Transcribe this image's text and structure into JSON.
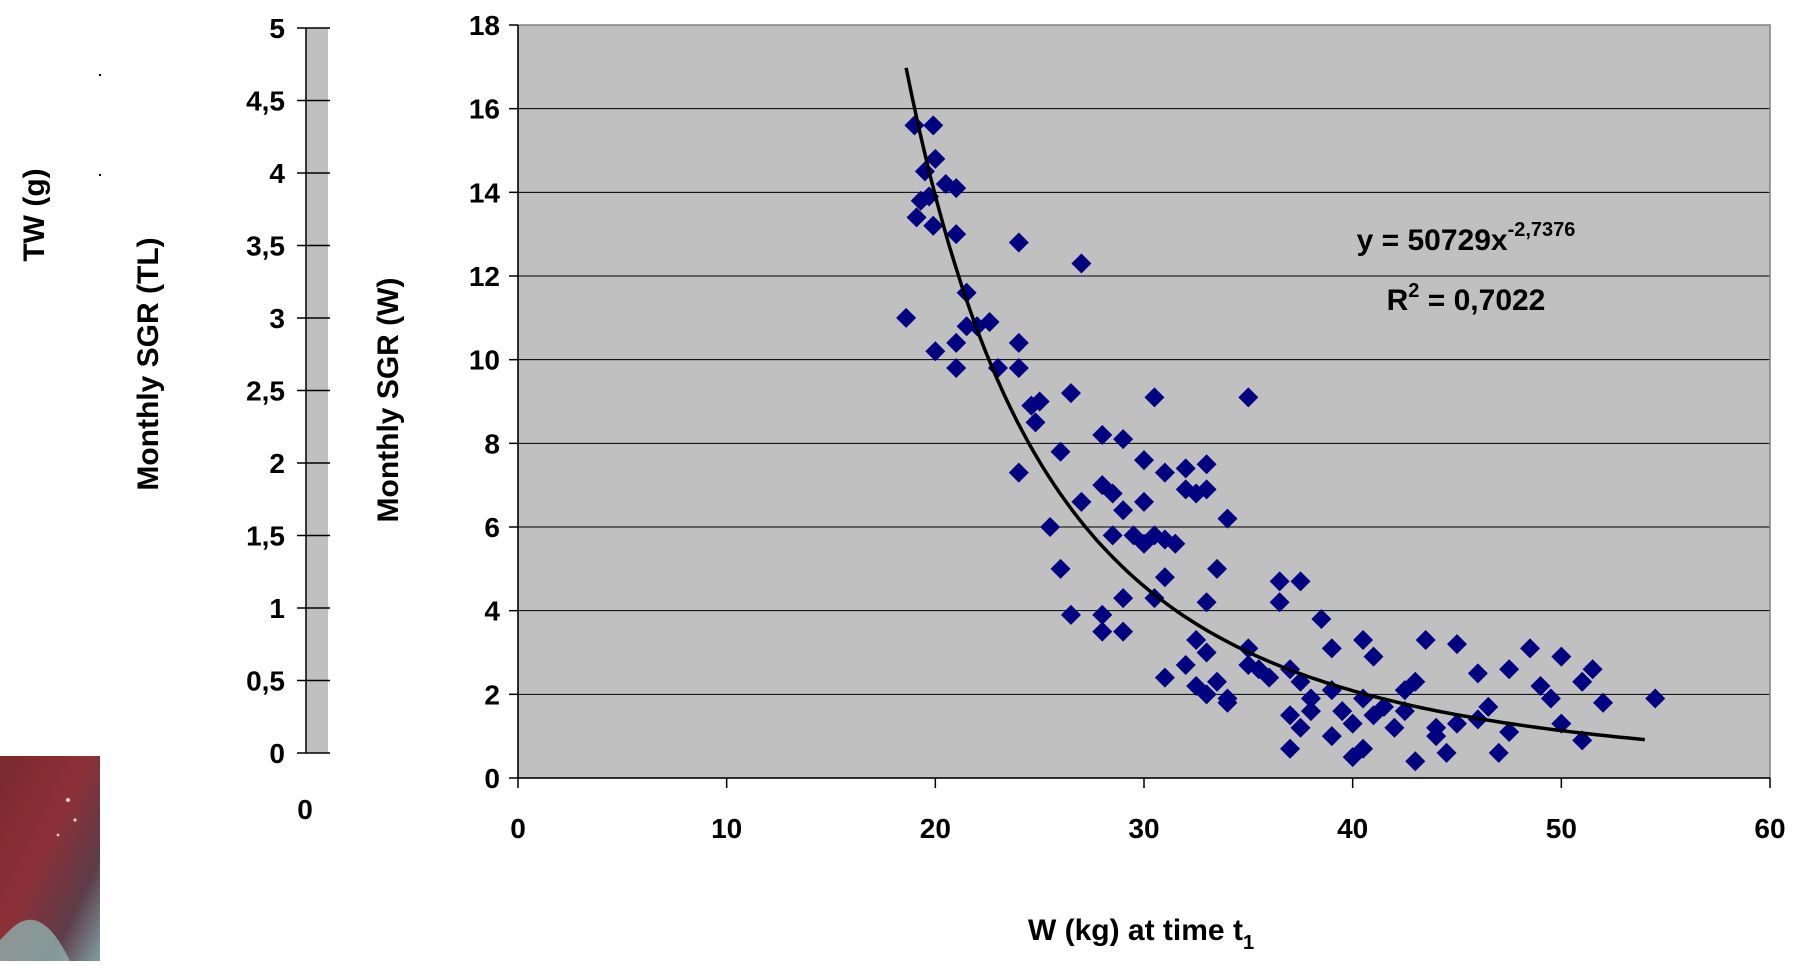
{
  "left_panel": {
    "tw_axis_label": "TW (g)",
    "tl_axis": {
      "label": "Monthly SGR (TL)",
      "ticks": [
        "0",
        "0,5",
        "1",
        "1,5",
        "2",
        "2,5",
        "3",
        "3,5",
        "4",
        "4,5",
        "5"
      ],
      "range": [
        0,
        5
      ],
      "bottom_x_tick": "0"
    }
  },
  "chart_data": {
    "type": "scatter",
    "title": "",
    "xlabel": "W (kg) at time t",
    "xlabel_subscript": "1",
    "ylabel": "Monthly SGR (W)",
    "xlim": [
      0,
      60
    ],
    "ylim": [
      0,
      18
    ],
    "x_ticks": [
      0,
      10,
      20,
      30,
      40,
      50,
      60
    ],
    "y_ticks": [
      0,
      2,
      4,
      6,
      8,
      10,
      12,
      14,
      16,
      18
    ],
    "grid": "horizontal",
    "plot_background": "#c0c0c0",
    "marker_color": "#000080",
    "marker": "diamond",
    "trendline": {
      "type": "power",
      "a": 50729,
      "b": -2.7376,
      "x_range": [
        18.6,
        54.0
      ],
      "color": "#000000",
      "equation_text": "y = 50729x",
      "equation_exponent": "-2,7376",
      "r2_prefix": "R",
      "r2_sup": "2",
      "r2_suffix": " = 0,7022"
    },
    "series": [
      {
        "points": [
          [
            18.6,
            11.0
          ],
          [
            19.0,
            15.6
          ],
          [
            19.5,
            14.5
          ],
          [
            19.9,
            15.6
          ],
          [
            19.1,
            13.4
          ],
          [
            19.3,
            13.8
          ],
          [
            19.7,
            13.9
          ],
          [
            20.0,
            14.8
          ],
          [
            20.5,
            14.2
          ],
          [
            21.0,
            14.1
          ],
          [
            19.9,
            13.2
          ],
          [
            21.0,
            13.0
          ],
          [
            20.0,
            10.2
          ],
          [
            21.0,
            10.4
          ],
          [
            21.0,
            9.8
          ],
          [
            21.5,
            11.6
          ],
          [
            21.5,
            10.8
          ],
          [
            22.0,
            10.8
          ],
          [
            22.6,
            10.9
          ],
          [
            23.0,
            9.8
          ],
          [
            24.0,
            10.4
          ],
          [
            24.0,
            9.8
          ],
          [
            24.0,
            12.8
          ],
          [
            24.6,
            8.9
          ],
          [
            25.0,
            9.0
          ],
          [
            24.8,
            8.5
          ],
          [
            26.5,
            9.2
          ],
          [
            27.0,
            12.3
          ],
          [
            26.0,
            7.8
          ],
          [
            28.0,
            8.2
          ],
          [
            29.0,
            8.1
          ],
          [
            24.0,
            7.3
          ],
          [
            25.5,
            6.0
          ],
          [
            27.0,
            6.6
          ],
          [
            28.0,
            7.0
          ],
          [
            28.5,
            6.8
          ],
          [
            29.0,
            6.4
          ],
          [
            29.5,
            5.8
          ],
          [
            30.0,
            7.6
          ],
          [
            30.0,
            6.6
          ],
          [
            30.5,
            9.1
          ],
          [
            31.0,
            7.3
          ],
          [
            32.0,
            7.4
          ],
          [
            32.5,
            6.8
          ],
          [
            33.0,
            7.5
          ],
          [
            33.0,
            6.9
          ],
          [
            34.0,
            6.2
          ],
          [
            35.0,
            9.1
          ],
          [
            26.0,
            5.0
          ],
          [
            28.5,
            5.8
          ],
          [
            30.5,
            5.8
          ],
          [
            31.0,
            5.7
          ],
          [
            31.5,
            5.6
          ],
          [
            32.0,
            6.9
          ],
          [
            26.5,
            3.9
          ],
          [
            28.0,
            3.9
          ],
          [
            29.0,
            4.3
          ],
          [
            31.0,
            4.8
          ],
          [
            30.5,
            4.3
          ],
          [
            33.0,
            4.2
          ],
          [
            33.5,
            5.0
          ],
          [
            28.0,
            3.5
          ],
          [
            29.0,
            3.5
          ],
          [
            31.0,
            2.4
          ],
          [
            32.0,
            2.7
          ],
          [
            32.5,
            3.3
          ],
          [
            33.0,
            3.0
          ],
          [
            32.5,
            2.2
          ],
          [
            33.0,
            2.0
          ],
          [
            34.0,
            1.8
          ],
          [
            35.0,
            3.1
          ],
          [
            35.0,
            2.7
          ],
          [
            35.5,
            2.6
          ],
          [
            34.0,
            1.9
          ],
          [
            36.5,
            4.7
          ],
          [
            36.5,
            4.2
          ],
          [
            37.5,
            4.7
          ],
          [
            37.0,
            2.6
          ],
          [
            37.5,
            2.3
          ],
          [
            38.0,
            1.9
          ],
          [
            37.0,
            1.5
          ],
          [
            37.5,
            1.2
          ],
          [
            37.0,
            0.7
          ],
          [
            38.5,
            3.8
          ],
          [
            39.0,
            3.1
          ],
          [
            39.0,
            2.1
          ],
          [
            39.5,
            1.6
          ],
          [
            39.0,
            1.0
          ],
          [
            40.0,
            0.5
          ],
          [
            40.5,
            0.7
          ],
          [
            40.5,
            3.3
          ],
          [
            41.0,
            2.9
          ],
          [
            40.5,
            1.9
          ],
          [
            41.0,
            1.5
          ],
          [
            41.5,
            1.7
          ],
          [
            42.0,
            1.2
          ],
          [
            42.5,
            2.1
          ],
          [
            43.0,
            2.3
          ],
          [
            43.5,
            3.3
          ],
          [
            42.5,
            1.6
          ],
          [
            43.0,
            0.4
          ],
          [
            44.0,
            1.0
          ],
          [
            44.5,
            0.6
          ],
          [
            45.0,
            3.2
          ],
          [
            45.0,
            1.3
          ],
          [
            46.0,
            2.5
          ],
          [
            46.0,
            1.4
          ],
          [
            46.5,
            1.7
          ],
          [
            47.0,
            0.6
          ],
          [
            47.5,
            1.1
          ],
          [
            47.5,
            2.6
          ],
          [
            48.5,
            3.1
          ],
          [
            49.0,
            2.2
          ],
          [
            49.5,
            1.9
          ],
          [
            50.0,
            2.9
          ],
          [
            50.0,
            1.3
          ],
          [
            51.0,
            0.9
          ],
          [
            51.0,
            2.3
          ],
          [
            51.5,
            2.6
          ],
          [
            52.0,
            1.8
          ],
          [
            54.5,
            1.9
          ],
          [
            36.0,
            2.4
          ],
          [
            38.0,
            1.6
          ],
          [
            40.0,
            1.3
          ],
          [
            44.0,
            1.2
          ],
          [
            33.5,
            2.3
          ],
          [
            30.0,
            5.6
          ]
        ]
      }
    ]
  }
}
